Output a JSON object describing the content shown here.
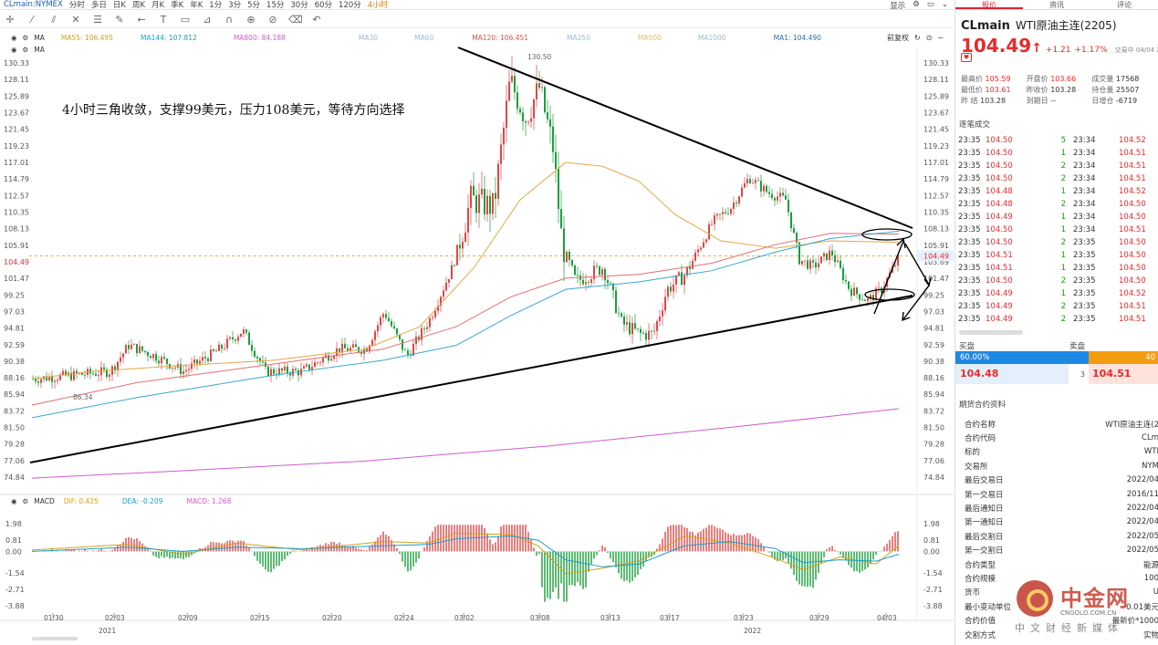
{
  "topbar": {
    "symbol": "CLmain:NYMEX",
    "periods": [
      "分时",
      "多日",
      "日K",
      "周K",
      "月K",
      "季K",
      "年K",
      "1分",
      "3分",
      "5分",
      "15分",
      "30分",
      "60分",
      "120分",
      "4小时"
    ],
    "active_period": "4小时",
    "right": [
      "显示",
      "",
      ""
    ]
  },
  "ma_main": {
    "ma": "MA",
    "items": [
      {
        "label": "MA55: 106.495",
        "color": "#d4a017"
      },
      {
        "label": "MA144: 107.812",
        "color": "#1aa0c8"
      },
      {
        "label": "MA800: 84.188",
        "color": "#d15bd1"
      },
      {
        "label": "MA30",
        "color": "#9bbcd6"
      },
      {
        "label": "MA60",
        "color": "#9bbcd6"
      },
      {
        "label": "MA120: 106.451",
        "color": "#d9534f"
      },
      {
        "label": "MA250",
        "color": "#9bbcd6"
      },
      {
        "label": "MA500",
        "color": "#e7b96b"
      },
      {
        "label": "MA1000",
        "color": "#9bbcd6"
      },
      {
        "label": "MA1: 104.490",
        "color": "#2a6fb5"
      }
    ],
    "restore": "前复权"
  },
  "ma_second": {
    "label": "MA"
  },
  "macd_header": {
    "name": "MACD",
    "dif": "DIF: 0.425",
    "dea": "DEA: -0.209",
    "macd": "MACD: 1.268"
  },
  "annotation": "4小时三角收敛，支撑99美元，压力108美元，等待方向选择",
  "price_axis": [
    "130.33",
    "128.11",
    "125.89",
    "123.67",
    "121.45",
    "119.23",
    "117.01",
    "114.79",
    "112.57",
    "110.35",
    "108.13",
    "105.91",
    "103.69",
    "101.47",
    "99.25",
    "97.03",
    "94.81",
    "92.59",
    "90.38",
    "88.16",
    "85.94",
    "83.72",
    "81.50",
    "79.28",
    "77.06",
    "74.84"
  ],
  "price_axis_left": [
    "130.33",
    "128.11",
    "125.89",
    "123.67",
    "121.45",
    "119.23",
    "117.01",
    "114.79",
    "112.57",
    "110.35",
    "108.13",
    "105.91",
    "104.49",
    "101.47",
    "99.25",
    "97.03",
    "94.81",
    "92.59",
    "90.38",
    "88.16",
    "85.94",
    "83.72",
    "81.50",
    "79.28",
    "77.06",
    "74.84"
  ],
  "current_price_tag": "104.49",
  "peak_label": "130.50",
  "low_label": "86.34",
  "macd_axis": [
    "1.98",
    "0.81",
    "0.00",
    "-1.54",
    "-2.71",
    "-3.88"
  ],
  "x_axis": [
    "01/30",
    "02/03",
    "02/09",
    "02/15",
    "02/20",
    "02/24",
    "03/02",
    "03/08",
    "03/13",
    "03/17",
    "03/23",
    "03/29",
    "04/03"
  ],
  "year_labels": [
    "2021",
    "2022"
  ],
  "right_panel": {
    "tabs": [
      "报价",
      "资讯",
      "评论"
    ],
    "code": "CLmain",
    "name": "WTI原油主连(2205)",
    "price": "104.49",
    "change": "+1.21",
    "change_pct": "+1.17%",
    "time": "交易中 04/04 23:35",
    "stats": [
      [
        {
          "k": "最高价",
          "v": "105.59",
          "c": "red"
        },
        {
          "k": "开盘价",
          "v": "103.66",
          "c": "red"
        },
        {
          "k": "成交量",
          "v": "17568",
          "c": ""
        }
      ],
      [
        {
          "k": "最低价",
          "v": "103.61",
          "c": "red"
        },
        {
          "k": "昨收价",
          "v": "103.28",
          "c": ""
        },
        {
          "k": "持仓量",
          "v": "25507",
          "c": ""
        }
      ],
      [
        {
          "k": "昨 结",
          "v": "103.28",
          "c": ""
        },
        {
          "k": "到期日",
          "v": "--",
          "c": ""
        },
        {
          "k": "日增仓",
          "v": "-6719",
          "c": ""
        }
      ]
    ],
    "ticks_title": "逐笔成交",
    "ticks": [
      [
        "23:35",
        "104.50",
        "5",
        "23:34",
        "104.52"
      ],
      [
        "23:35",
        "104.50",
        "1",
        "23:34",
        "104.51"
      ],
      [
        "23:35",
        "104.50",
        "2",
        "23:34",
        "104.51"
      ],
      [
        "23:35",
        "104.50",
        "2",
        "23:34",
        "104.51"
      ],
      [
        "23:35",
        "104.48",
        "1",
        "23:34",
        "104.52"
      ],
      [
        "23:35",
        "104.48",
        "2",
        "23:34",
        "104.50"
      ],
      [
        "23:35",
        "104.49",
        "1",
        "23:34",
        "104.50"
      ],
      [
        "23:35",
        "104.50",
        "1",
        "23:34",
        "104.51"
      ],
      [
        "23:35",
        "104.50",
        "2",
        "23:35",
        "104.50"
      ],
      [
        "23:35",
        "104.51",
        "1",
        "23:35",
        "104.50"
      ],
      [
        "23:35",
        "104.51",
        "1",
        "23:35",
        "104.50"
      ],
      [
        "23:35",
        "104.50",
        "2",
        "23:35",
        "104.50"
      ],
      [
        "23:35",
        "104.49",
        "1",
        "23:35",
        "104.52"
      ],
      [
        "23:35",
        "104.49",
        "2",
        "23:35",
        "104.51"
      ],
      [
        "23:35",
        "104.49",
        "2",
        "23:35",
        "104.51"
      ]
    ],
    "buy_label": "买盘",
    "sell_label": "卖盘",
    "buy_pct": "60.00%",
    "sell_pct": "40",
    "bid": "104.48",
    "bid_vol": "3",
    "ask": "104.51",
    "contract_title": "期货合约资料",
    "contract": [
      [
        "合约名称",
        "WTI原油主连(2"
      ],
      [
        "合约代码",
        "CLm"
      ],
      [
        "标的",
        "WTI"
      ],
      [
        "交易所",
        "NYM"
      ],
      [
        "最后交易日",
        "2022/04"
      ],
      [
        "第一交易日",
        "2016/11"
      ],
      [
        "最后通知日",
        "2022/04"
      ],
      [
        "第一通知日",
        "2022/04"
      ],
      [
        "最后交割日",
        "2022/05"
      ],
      [
        "第一交割日",
        "2022/05"
      ],
      [
        "合约类型",
        "能源"
      ],
      [
        "合约规模",
        "100"
      ],
      [
        "货币",
        "U"
      ],
      [
        "最小变动单位",
        "0.01美元"
      ],
      [
        "合约价值",
        "最新价*1000"
      ],
      [
        "交割方式",
        "实物"
      ]
    ]
  },
  "watermark": {
    "brand": "中金网",
    "site": "CNGOLD.COM.CN",
    "sub": "中文财经新媒体"
  }
}
